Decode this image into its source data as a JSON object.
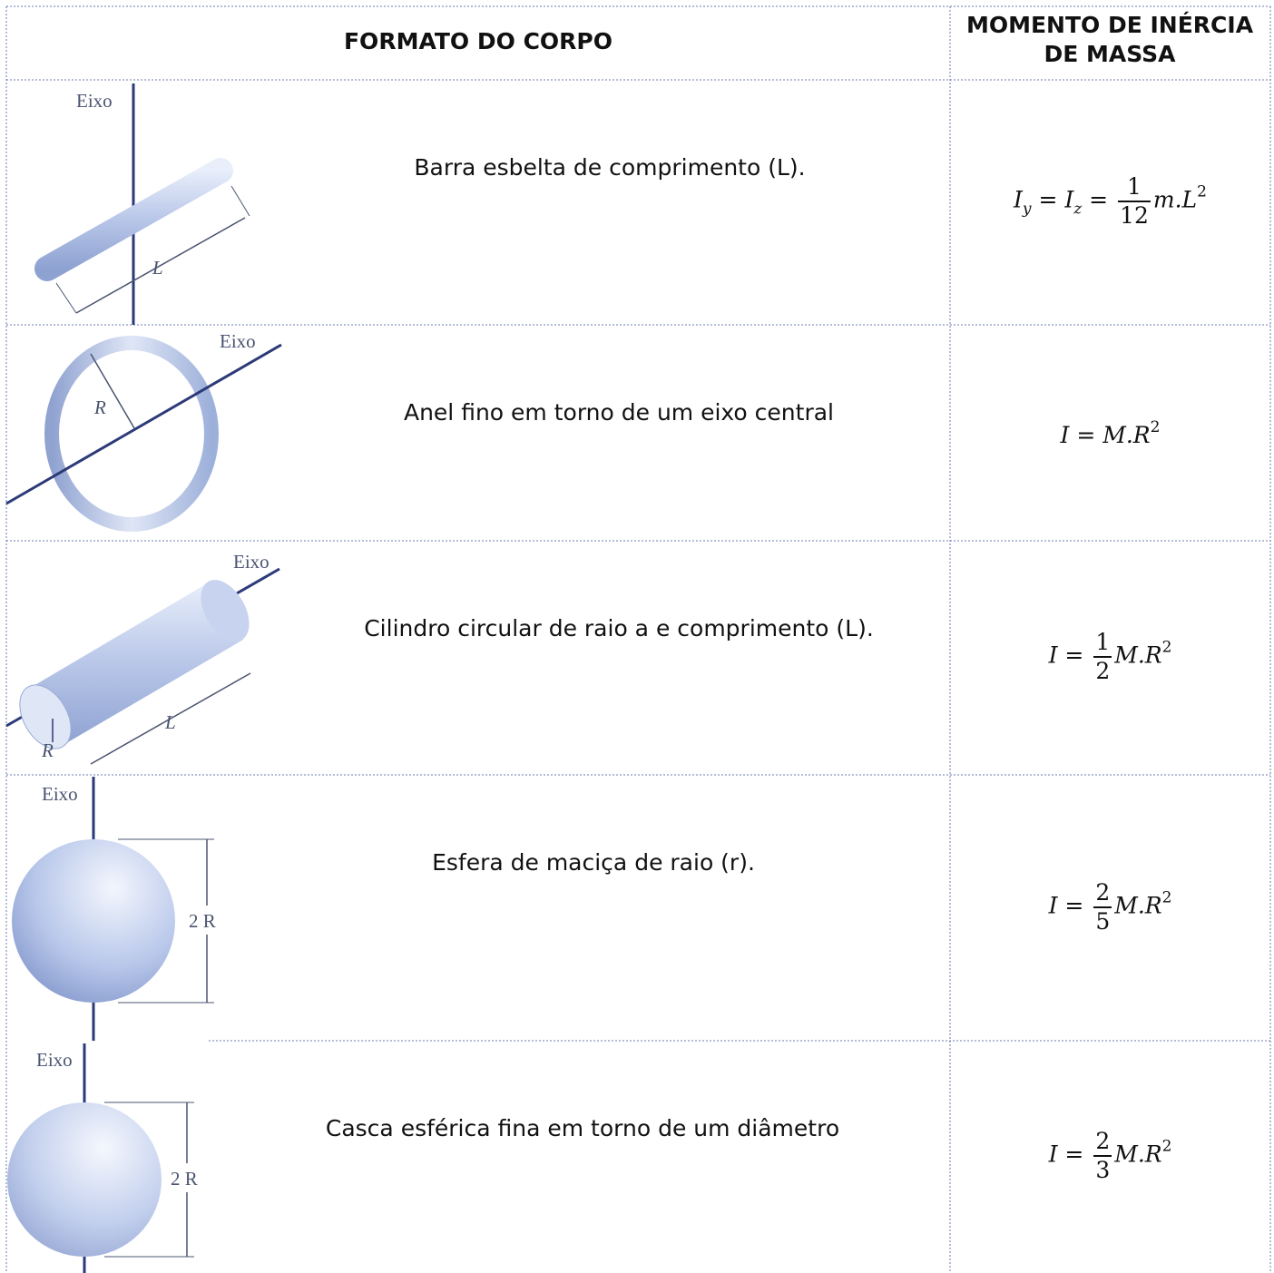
{
  "header": {
    "shape": "FORMATO DO CORPO",
    "moment": "MOMENTO DE INÉRCIA DE MASSA"
  },
  "rows": [
    {
      "figure": {
        "axis": "Eixo",
        "dims": [
          "L"
        ]
      },
      "description": "Barra esbelta de comprimento (L).",
      "formula": {
        "terms": [
          {
            "base": "I",
            "sub": "y"
          },
          {
            "base": "I",
            "sub": "z"
          }
        ],
        "equals": "=",
        "num": "1",
        "den": "12",
        "body": "m.L",
        "sup": "2"
      }
    },
    {
      "figure": {
        "axis": "Eixo",
        "dims": [
          "R"
        ]
      },
      "description": "Anel fino em torno de um eixo central",
      "formula": {
        "terms": [
          {
            "base": "I"
          }
        ],
        "equals": "=",
        "body": "M.R",
        "sup": "2"
      }
    },
    {
      "figure": {
        "axis": "Eixo",
        "dims": [
          "L",
          "R"
        ]
      },
      "description": "Cilindro circular de raio a e comprimento (L).",
      "formula": {
        "terms": [
          {
            "base": "I"
          }
        ],
        "equals": "=",
        "num": "1",
        "den": "2",
        "body": "M.R",
        "sup": "2"
      }
    },
    {
      "figure": {
        "axis": "Eixo",
        "dims": [
          "2 R"
        ]
      },
      "description": "Esfera de maciça de raio (r).",
      "formula": {
        "terms": [
          {
            "base": "I"
          }
        ],
        "equals": "=",
        "num": "2",
        "den": "5",
        "body": "M.R",
        "sup": "2"
      }
    },
    {
      "figure": {
        "axis": "Eixo",
        "dims": [
          "2 R"
        ]
      },
      "description": "Casca esférica fina em torno de um diâmetro",
      "formula": {
        "terms": [
          {
            "base": "I"
          }
        ],
        "equals": "=",
        "num": "2",
        "den": "3",
        "body": "M.R",
        "sup": "2"
      }
    }
  ]
}
